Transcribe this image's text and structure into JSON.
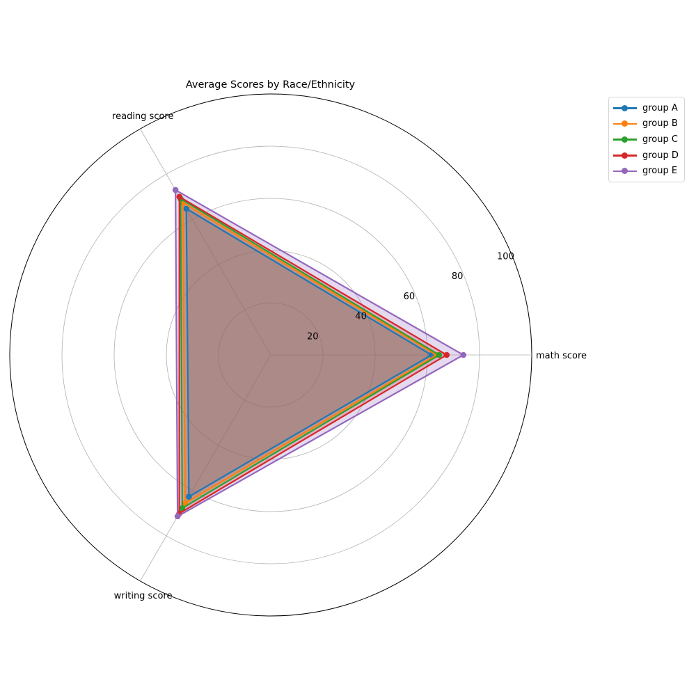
{
  "chart_data": {
    "type": "radar",
    "title": "Average Scores by Race/Ethnicity",
    "axes": [
      "math score",
      "reading score",
      "writing score"
    ],
    "rlim": [
      0,
      100
    ],
    "rticks": [
      20,
      40,
      60,
      80,
      100
    ],
    "grid": true,
    "legend_position": "top-right, outside",
    "series": [
      {
        "name": "group A",
        "color": "#1f77b4",
        "values": [
          61.6,
          64.7,
          62.7
        ]
      },
      {
        "name": "group B",
        "color": "#ff7f0e",
        "values": [
          63.5,
          67.4,
          65.6
        ]
      },
      {
        "name": "group C",
        "color": "#2ca02c",
        "values": [
          64.5,
          69.1,
          67.8
        ]
      },
      {
        "name": "group D",
        "color": "#d62728",
        "values": [
          67.4,
          70.0,
          70.1
        ]
      },
      {
        "name": "group E",
        "color": "#9467bd",
        "values": [
          73.8,
          73.0,
          71.4
        ]
      }
    ]
  }
}
